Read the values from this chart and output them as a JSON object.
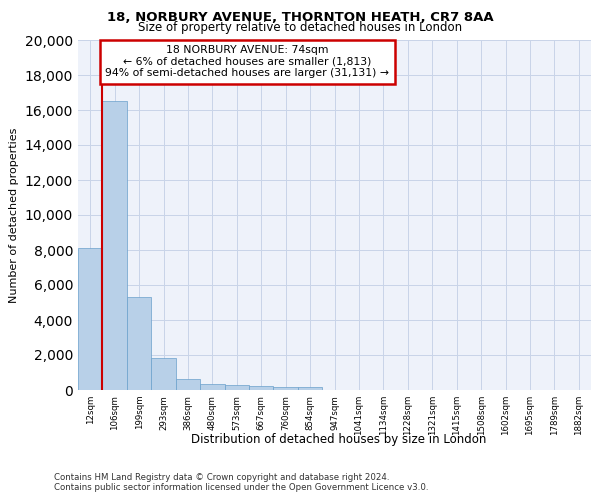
{
  "title1": "18, NORBURY AVENUE, THORNTON HEATH, CR7 8AA",
  "title2": "Size of property relative to detached houses in London",
  "xlabel": "Distribution of detached houses by size in London",
  "ylabel": "Number of detached properties",
  "categories": [
    "12sqm",
    "106sqm",
    "199sqm",
    "293sqm",
    "386sqm",
    "480sqm",
    "573sqm",
    "667sqm",
    "760sqm",
    "854sqm",
    "947sqm",
    "1041sqm",
    "1134sqm",
    "1228sqm",
    "1321sqm",
    "1415sqm",
    "1508sqm",
    "1602sqm",
    "1695sqm",
    "1789sqm",
    "1882sqm"
  ],
  "values": [
    8100,
    16500,
    5300,
    1850,
    650,
    350,
    270,
    220,
    190,
    170,
    0,
    0,
    0,
    0,
    0,
    0,
    0,
    0,
    0,
    0,
    0
  ],
  "bar_color": "#b8d0e8",
  "bar_edge_color": "#6aa0cc",
  "annotation_box_text": "18 NORBURY AVENUE: 74sqm\n← 6% of detached houses are smaller (1,813)\n94% of semi-detached houses are larger (31,131) →",
  "annotation_box_color": "#ffffff",
  "annotation_box_edge_color": "#cc0000",
  "vline_color": "#cc0000",
  "ylim": [
    0,
    20000
  ],
  "yticks": [
    0,
    2000,
    4000,
    6000,
    8000,
    10000,
    12000,
    14000,
    16000,
    18000,
    20000
  ],
  "footer_line1": "Contains HM Land Registry data © Crown copyright and database right 2024.",
  "footer_line2": "Contains public sector information licensed under the Open Government Licence v3.0.",
  "background_color": "#eef2fa",
  "grid_color": "#c8d4e8"
}
